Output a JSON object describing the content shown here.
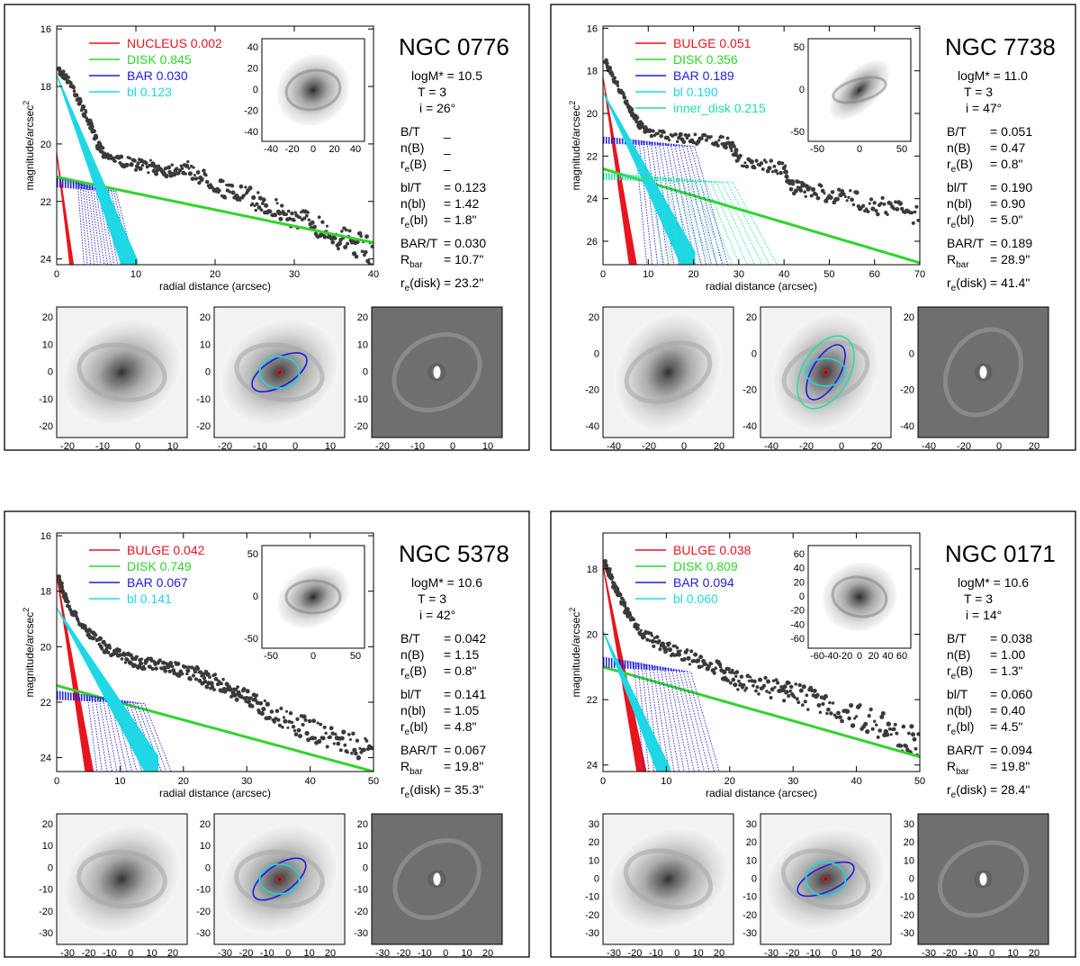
{
  "colors": {
    "nucleus": "#e8141e",
    "bulge": "#e8141e",
    "disk": "#2ed52b",
    "bar": "#1d1de0",
    "bl": "#1fd7e5",
    "inner_disk": "#22e0a0",
    "data": "#3a3a3a",
    "resid_bg": "#6f6f6f"
  },
  "chart_data": [
    {
      "type": "scatter",
      "galaxy": "NGC 0776",
      "xlabel": "radial distance (arcsec)",
      "ylabel": "magnitude/arcsec",
      "ylabel_sup": "2",
      "xlim": [
        0,
        40
      ],
      "ylim": [
        24.2,
        15.9
      ],
      "xticks": [
        0,
        10,
        20,
        30,
        40
      ],
      "yticks": [
        16,
        18,
        20,
        22,
        24
      ],
      "components": [
        {
          "name": "NUCLEUS",
          "frac": "0.002",
          "color": "nucleus",
          "shape": "sersic",
          "mu0": 20.3,
          "slope": 2.1
        },
        {
          "name": "DISK",
          "frac": "0.845",
          "color": "disk",
          "shape": "line",
          "mu0": 21.15,
          "slope": 0.057
        },
        {
          "name": "BAR",
          "frac": "0.030",
          "color": "bar",
          "shape": "bar",
          "mu0": 21.2,
          "rbar": 10.7
        },
        {
          "name": "bl",
          "frac": "0.123",
          "color": "bl",
          "shape": "sersic",
          "mu0": 17.6,
          "slope": 0.72
        }
      ],
      "data_profile": [
        [
          0.3,
          17.5
        ],
        [
          1,
          17.6
        ],
        [
          2,
          18
        ],
        [
          3,
          18.6
        ],
        [
          4,
          19.2
        ],
        [
          5,
          19.9
        ],
        [
          6,
          20.3
        ],
        [
          8,
          20.6
        ],
        [
          10,
          20.7
        ],
        [
          12,
          20.8
        ],
        [
          14,
          20.9
        ],
        [
          16,
          20.8
        ],
        [
          18,
          21.1
        ],
        [
          20,
          21.4
        ],
        [
          22,
          21.7
        ],
        [
          24,
          21.8
        ],
        [
          26,
          22.1
        ],
        [
          28,
          22.3
        ],
        [
          30,
          22.6
        ],
        [
          32,
          22.7
        ],
        [
          34,
          23
        ],
        [
          36,
          23.3
        ],
        [
          38,
          23.5
        ],
        [
          40,
          23.8
        ]
      ],
      "stats": {
        "logm": "logM* = 10.5",
        "t": "T = 3",
        "incl": "i = 26°",
        "bt": "B/T",
        "bt_val": "_",
        "nb": "n(B)",
        "nb_val": "_",
        "reb": "r",
        "reb_sub": "e",
        "reb_tail": "(B)",
        "reb_val": "_",
        "blt": "bl/T",
        "blt_val": "= 0.123",
        "nbl": "n(bl)",
        "nbl_val": "= 1.42",
        "rebl": "r",
        "rebl_sub": "e",
        "rebl_tail": "(bl)",
        "rebl_val": "= 1.8\"",
        "bart": "BAR/T",
        "bart_val": "= 0.030",
        "rbar": "R",
        "rbar_sub": "bar",
        "rbar_val": "= 10.7\"",
        "redisk": "r",
        "redisk_sub": "e",
        "redisk_tail": "(disk)",
        "redisk_val": "= 23.2\""
      },
      "inset": {
        "ticks_x": [
          "-40",
          "-20",
          "0",
          "20",
          "40"
        ],
        "ticks_y": [
          "40",
          "20",
          "0",
          "-20",
          "-40"
        ],
        "pa": 40,
        "ell": 0.1
      },
      "thumbs": {
        "xticks": [
          "-20",
          "-10",
          "0",
          "10"
        ],
        "yticks": [
          "20",
          "10",
          "0",
          "-10",
          "-20"
        ],
        "bar_pa": 30,
        "bar_ell": 0.55,
        "bl_ell": 0.2,
        "inner_disk": false
      }
    },
    {
      "type": "scatter",
      "galaxy": "NGC 7738",
      "xlabel": "radial distance (arcsec)",
      "ylabel": "magnitude/arcsec",
      "ylabel_sup": "2",
      "xlim": [
        0,
        70
      ],
      "ylim": [
        27.1,
        15.9
      ],
      "xticks": [
        0,
        10,
        20,
        30,
        40,
        50,
        60,
        70
      ],
      "yticks": [
        16,
        18,
        20,
        22,
        24,
        26
      ],
      "components": [
        {
          "name": "BULGE",
          "frac": "0.051",
          "color": "bulge",
          "shape": "sersic",
          "mu0": 18.3,
          "slope": 1.35
        },
        {
          "name": "DISK",
          "frac": "0.356",
          "color": "disk",
          "shape": "line",
          "mu0": 22.6,
          "slope": 0.063
        },
        {
          "name": "BAR",
          "frac": "0.189",
          "color": "bar",
          "shape": "bar",
          "mu0": 21.1,
          "rbar": 28.9
        },
        {
          "name": "bl",
          "frac": "0.190",
          "color": "bl",
          "shape": "sersic",
          "mu0": 19.0,
          "slope": 0.42
        },
        {
          "name": "inner_disk",
          "frac": "0.215",
          "color": "inner_disk",
          "shape": "bar",
          "mu0": 22.8,
          "rbar": 41
        }
      ],
      "data_profile": [
        [
          0.5,
          17.5
        ],
        [
          2,
          18.2
        ],
        [
          4,
          19
        ],
        [
          6,
          19.8
        ],
        [
          8,
          20.5
        ],
        [
          10,
          20.9
        ],
        [
          15,
          21.1
        ],
        [
          20,
          21.2
        ],
        [
          25,
          21.3
        ],
        [
          28,
          21.4
        ],
        [
          30,
          22.2
        ],
        [
          35,
          22.4
        ],
        [
          40,
          22.6
        ],
        [
          42,
          23.5
        ],
        [
          45,
          23.6
        ],
        [
          50,
          23.8
        ],
        [
          55,
          24
        ],
        [
          60,
          24.3
        ],
        [
          65,
          24.5
        ],
        [
          70,
          24.8
        ]
      ],
      "stats": {
        "logm": "logM* = 11.0",
        "t": "T = 3",
        "incl": "i = 47°",
        "bt": "B/T",
        "bt_val": "= 0.051",
        "nb": "n(B)",
        "nb_val": "= 0.47",
        "reb": "r",
        "reb_sub": "e",
        "reb_tail": "(B)",
        "reb_val": "= 0.8\"",
        "blt": "bl/T",
        "blt_val": "= 0.190",
        "nbl": "n(bl)",
        "nbl_val": "= 0.90",
        "rebl": "r",
        "rebl_sub": "e",
        "rebl_tail": "(bl)",
        "rebl_val": "= 5.0\"",
        "bart": "BAR/T",
        "bart_val": "= 0.189",
        "rbar": "R",
        "rbar_sub": "bar",
        "rbar_val": "= 28.9\"",
        "redisk": "r",
        "redisk_sub": "e",
        "redisk_tail": "(disk)",
        "redisk_val": "= 41.4\""
      },
      "inset": {
        "ticks_x": [
          "-50",
          "0",
          "50"
        ],
        "ticks_y": [
          "50",
          "0",
          "-50"
        ],
        "pa": 45,
        "ell": 0.5
      },
      "thumbs": {
        "xticks": [
          "-40",
          "-20",
          "0",
          "20"
        ],
        "yticks": [
          "20",
          "0",
          "-20",
          "-40"
        ],
        "bar_pa": 60,
        "bar_ell": 0.55,
        "bl_ell": 0.3,
        "inner_disk": true
      }
    },
    {
      "type": "scatter",
      "galaxy": "NGC 5378",
      "xlabel": "radial distance (arcsec)",
      "ylabel": "magnitude/arcsec",
      "ylabel_sup": "2",
      "xlim": [
        0,
        50
      ],
      "ylim": [
        24.5,
        15.9
      ],
      "xticks": [
        0,
        10,
        20,
        30,
        40,
        50
      ],
      "yticks": [
        16,
        18,
        20,
        22,
        24
      ],
      "components": [
        {
          "name": "BULGE",
          "frac": "0.042",
          "color": "bulge",
          "shape": "sersic",
          "mu0": 17.4,
          "slope": 1.4
        },
        {
          "name": "DISK",
          "frac": "0.749",
          "color": "disk",
          "shape": "line",
          "mu0": 21.4,
          "slope": 0.062
        },
        {
          "name": "BAR",
          "frac": "0.067",
          "color": "bar",
          "shape": "bar",
          "mu0": 21.6,
          "rbar": 19.8
        },
        {
          "name": "bl",
          "frac": "0.141",
          "color": "bl",
          "shape": "sersic",
          "mu0": 18.6,
          "slope": 0.38
        },
        {
          "name": "",
          "frac": "",
          "color": "",
          "shape": "none"
        }
      ],
      "data_profile": [
        [
          0.3,
          17.5
        ],
        [
          1,
          18
        ],
        [
          2,
          18.6
        ],
        [
          4,
          19.2
        ],
        [
          6,
          19.7
        ],
        [
          8,
          20.1
        ],
        [
          10,
          20.3
        ],
        [
          12,
          20.5
        ],
        [
          14,
          20.6
        ],
        [
          16,
          20.7
        ],
        [
          18,
          20.8
        ],
        [
          20,
          20.8
        ],
        [
          22,
          21
        ],
        [
          24,
          21.2
        ],
        [
          26,
          21.4
        ],
        [
          28,
          21.6
        ],
        [
          30,
          21.8
        ],
        [
          32,
          22.1
        ],
        [
          35,
          22.5
        ],
        [
          38,
          22.8
        ],
        [
          41,
          23.1
        ],
        [
          44,
          23.3
        ],
        [
          47,
          23.6
        ],
        [
          50,
          23.9
        ]
      ],
      "stats": {
        "logm": "logM* = 10.6",
        "t": "T = 3",
        "incl": "i = 42°",
        "bt": "B/T",
        "bt_val": "= 0.042",
        "nb": "n(B)",
        "nb_val": "= 1.15",
        "reb": "r",
        "reb_sub": "e",
        "reb_tail": "(B)",
        "reb_val": "= 0.8\"",
        "blt": "bl/T",
        "blt_val": "= 0.141",
        "nbl": "n(bl)",
        "nbl_val": "= 1.05",
        "rebl": "r",
        "rebl_sub": "e",
        "rebl_tail": "(bl)",
        "rebl_val": "= 4.8\"",
        "bart": "BAR/T",
        "bart_val": "= 0.067",
        "rbar": "R",
        "rbar_sub": "bar",
        "rbar_val": "= 19.8\"",
        "redisk": "r",
        "redisk_sub": "e",
        "redisk_tail": "(disk)",
        "redisk_val": "= 35.3\""
      },
      "inset": {
        "ticks_x": [
          "-50",
          "0",
          "50"
        ],
        "ticks_y": [
          "50",
          "0",
          "-50"
        ],
        "pa": 30,
        "ell": 0.25
      },
      "thumbs": {
        "xticks": [
          "-30",
          "-20",
          "-10",
          "0",
          "10",
          "20"
        ],
        "yticks": [
          "20",
          "10",
          "0",
          "-10",
          "-20",
          "-30"
        ],
        "bar_pa": 35,
        "bar_ell": 0.55,
        "bl_ell": 0.25,
        "inner_disk": false
      }
    },
    {
      "type": "scatter",
      "galaxy": "NGC 0171",
      "xlabel": "radial distance (arcsec)",
      "ylabel": "magnitude/arcsec",
      "ylabel_sup": "2",
      "xlim": [
        0,
        50
      ],
      "ylim": [
        24.2,
        16.9
      ],
      "xticks": [
        0,
        10,
        20,
        30,
        40,
        50
      ],
      "yticks": [
        18,
        20,
        22,
        24
      ],
      "components": [
        {
          "name": "BULGE",
          "frac": "0.038",
          "color": "bulge",
          "shape": "sersic",
          "mu0": 17.9,
          "slope": 1.05
        },
        {
          "name": "DISK",
          "frac": "0.809",
          "color": "disk",
          "shape": "line",
          "mu0": 21.0,
          "slope": 0.055
        },
        {
          "name": "BAR",
          "frac": "0.094",
          "color": "bar",
          "shape": "bar",
          "mu0": 20.7,
          "rbar": 19.8
        },
        {
          "name": "bl",
          "frac": "0.060",
          "color": "bl",
          "shape": "sersic",
          "mu0": 19.9,
          "slope": 0.45
        },
        {
          "name": "",
          "frac": "",
          "color": "",
          "shape": "none"
        }
      ],
      "data_profile": [
        [
          0.3,
          17.8
        ],
        [
          1,
          18.1
        ],
        [
          2,
          18.6
        ],
        [
          3,
          19
        ],
        [
          4,
          19.4
        ],
        [
          6,
          19.9
        ],
        [
          8,
          20.2
        ],
        [
          10,
          20.4
        ],
        [
          12,
          20.6
        ],
        [
          15,
          20.8
        ],
        [
          18,
          21
        ],
        [
          20,
          21.3
        ],
        [
          22,
          21.5
        ],
        [
          25,
          21.6
        ],
        [
          28,
          21.7
        ],
        [
          30,
          21.8
        ],
        [
          33,
          22
        ],
        [
          36,
          22.2
        ],
        [
          40,
          22.5
        ],
        [
          44,
          22.8
        ],
        [
          47,
          23.1
        ],
        [
          50,
          23.4
        ]
      ],
      "stats": {
        "logm": "logM* = 10.6",
        "t": "T = 3",
        "incl": "i = 14°",
        "bt": "B/T",
        "bt_val": "= 0.038",
        "nb": "n(B)",
        "nb_val": "= 1.00",
        "reb": "r",
        "reb_sub": "e",
        "reb_tail": "(B)",
        "reb_val": "= 1.3\"",
        "blt": "bl/T",
        "blt_val": "= 0.060",
        "nbl": "n(bl)",
        "nbl_val": "= 0.40",
        "rebl": "r",
        "rebl_sub": "e",
        "rebl_tail": "(bl)",
        "rebl_val": "= 4.5\"",
        "bart": "BAR/T",
        "bart_val": "= 0.094",
        "rbar": "R",
        "rbar_sub": "bar",
        "rbar_val": "= 19.8\"",
        "redisk": "r",
        "redisk_sub": "e",
        "redisk_tail": "(disk)",
        "redisk_val": "= 28.4\""
      },
      "inset": {
        "ticks_x": [
          "-60",
          "-40",
          "-20",
          "0",
          "20",
          "40",
          "60"
        ],
        "ticks_y": [
          "60",
          "40",
          "20",
          "0",
          "-20",
          "-40",
          "-60"
        ],
        "pa": 20,
        "ell": 0.1
      },
      "thumbs": {
        "xticks": [
          "-30",
          "-20",
          "-10",
          "0",
          "10",
          "20"
        ],
        "yticks": [
          "30",
          "20",
          "10",
          "0",
          "-10",
          "-20",
          "-30"
        ],
        "bar_pa": 25,
        "bar_ell": 0.6,
        "bl_ell": 0.15,
        "inner_disk": false
      }
    }
  ]
}
